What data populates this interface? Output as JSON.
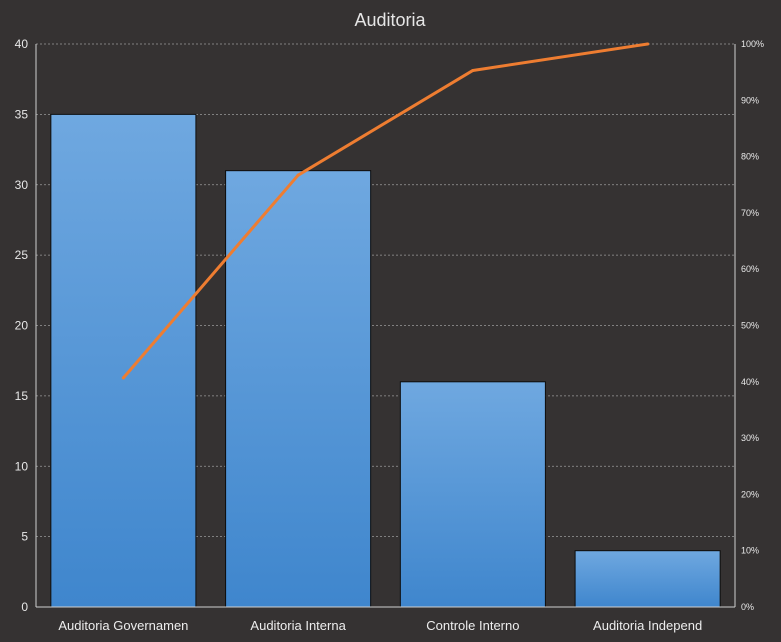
{
  "chart_data": {
    "type": "bar",
    "title": "Auditoria",
    "categories": [
      "Auditoria Governamen",
      "Auditoria Interna",
      "Controle Interno",
      "Auditoria Independ"
    ],
    "series": [
      {
        "type": "bar",
        "values": [
          35,
          31,
          16,
          4
        ]
      },
      {
        "type": "line",
        "axis": "secondary",
        "values": [
          40.7,
          76.7,
          95.3,
          100
        ]
      }
    ],
    "ylim": [
      0,
      40
    ],
    "yticks": [
      0,
      5,
      10,
      15,
      20,
      25,
      30,
      35,
      40
    ],
    "y2lim": [
      0,
      100
    ],
    "y2ticks": [
      "0%",
      "10%",
      "20%",
      "30%",
      "40%",
      "50%",
      "60%",
      "70%",
      "80%",
      "90%",
      "100%"
    ],
    "grid": true,
    "legend": "none",
    "colors": {
      "background": "#353232",
      "bar_top": "#6fa8e0",
      "bar_bottom": "#3f86cd",
      "line": "#ee7d31",
      "grid": "#9a9a9a",
      "axis": "#d0d0d0"
    }
  }
}
